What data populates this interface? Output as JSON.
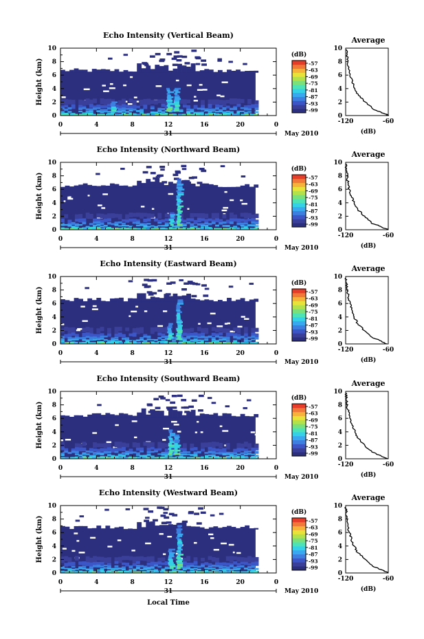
{
  "figure": {
    "type": "heatmap",
    "xlabel": "Local Time",
    "date_label": "May 2010",
    "day_label": "31",
    "colorbar_unit": "(dB)",
    "colorbar_ticks": [
      "-57",
      "-63",
      "-69",
      "-75",
      "-81",
      "-87",
      "-93",
      "-99"
    ],
    "avg_title": "Average",
    "avg_xlabel": "(dB)",
    "colors": [
      "#2b2f7e",
      "#3a3f99",
      "#3c56c8",
      "#3d7fe0",
      "#3aa8f0",
      "#35d1e6",
      "#4de3b4",
      "#7be07a",
      "#b4e04a",
      "#e8e23a",
      "#f6b23a",
      "#f2783a",
      "#e63c2a"
    ]
  },
  "chart_data": [
    {
      "type": "heatmap",
      "title": "Echo Intensity (Vertical Beam)",
      "ylabel": "Height (km)",
      "xlim": [
        0,
        24
      ],
      "ylim": [
        0,
        10
      ],
      "xticks": [
        "0",
        "4",
        "8",
        "12",
        "16",
        "20",
        "0"
      ],
      "yticks": [
        "0",
        "2",
        "4",
        "6",
        "8",
        "10"
      ],
      "top_km": 6.4,
      "bursts": [
        {
          "t": 12.2,
          "km": 4.0
        },
        {
          "t": 13.0,
          "km": 4.0
        },
        {
          "t": 6.0,
          "km": 2.0
        }
      ],
      "average": {
        "xlim": [
          -120,
          -60
        ],
        "xticks": [
          "-120",
          "-60"
        ],
        "height_km": [
          0,
          0.5,
          1,
          2,
          3,
          4,
          5,
          6,
          7,
          8,
          9,
          9.8
        ],
        "db": [
          -59,
          -70,
          -82,
          -92,
          -102,
          -107,
          -111,
          -114,
          -116,
          -117,
          -118,
          -119
        ]
      }
    },
    {
      "type": "heatmap",
      "title": "Echo Intensity (Northward Beam)",
      "ylabel": "Height (km)",
      "xlim": [
        0,
        24
      ],
      "ylim": [
        0,
        10
      ],
      "xticks": [
        "0",
        "4",
        "8",
        "12",
        "16",
        "20",
        "0"
      ],
      "yticks": [
        "0",
        "2",
        "4",
        "6",
        "8",
        "10"
      ],
      "top_km": 6.3,
      "bursts": [
        {
          "t": 13.3,
          "km": 7.5
        },
        {
          "t": 12.5,
          "km": 2.5
        }
      ],
      "average": {
        "xlim": [
          -120,
          -60
        ],
        "xticks": [
          "-120",
          "-60"
        ],
        "height_km": [
          0,
          0.5,
          1,
          2,
          3,
          4,
          5,
          6,
          7,
          8,
          9,
          9.8
        ],
        "db": [
          -60,
          -71,
          -84,
          -93,
          -103,
          -108,
          -112,
          -115,
          -117,
          -118,
          -119,
          -120
        ]
      }
    },
    {
      "type": "heatmap",
      "title": "Echo Intensity (Eastward Beam)",
      "ylabel": "Height (km)",
      "xlim": [
        0,
        24
      ],
      "ylim": [
        0,
        10
      ],
      "xticks": [
        "0",
        "4",
        "8",
        "12",
        "16",
        "20",
        "0"
      ],
      "yticks": [
        "0",
        "2",
        "4",
        "6",
        "8",
        "10"
      ],
      "top_km": 6.3,
      "bursts": [
        {
          "t": 13.3,
          "km": 6.5
        },
        {
          "t": 12.3,
          "km": 3.0
        }
      ],
      "average": {
        "xlim": [
          -120,
          -60
        ],
        "xticks": [
          "-120",
          "-60"
        ],
        "height_km": [
          0,
          0.5,
          1,
          2,
          3,
          4,
          5,
          6,
          7,
          8,
          9,
          9.8
        ],
        "db": [
          -62,
          -72,
          -83,
          -94,
          -103,
          -108,
          -111,
          -114,
          -116,
          -118,
          -119,
          -120
        ]
      }
    },
    {
      "type": "heatmap",
      "title": "Echo Intensity (Southward Beam)",
      "ylabel": "Height (km)",
      "xlim": [
        0,
        24
      ],
      "ylim": [
        0,
        10
      ],
      "xticks": [
        "0",
        "4",
        "8",
        "12",
        "16",
        "20",
        "0"
      ],
      "yticks": [
        "0",
        "2",
        "4",
        "6",
        "8",
        "10"
      ],
      "top_km": 6.2,
      "bursts": [
        {
          "t": 12.4,
          "km": 4.2
        },
        {
          "t": 13.0,
          "km": 3.5
        }
      ],
      "average": {
        "xlim": [
          -120,
          -60
        ],
        "xticks": [
          "-120",
          "-60"
        ],
        "height_km": [
          0,
          0.5,
          1,
          2,
          3,
          4,
          5,
          6,
          7,
          8,
          9,
          9.8
        ],
        "db": [
          -61,
          -71,
          -83,
          -93,
          -102,
          -107,
          -111,
          -114,
          -116,
          -118,
          -119,
          -120
        ]
      }
    },
    {
      "type": "heatmap",
      "title": "Echo Intensity (Westward Beam)",
      "ylabel": "Height (km)",
      "xlim": [
        0,
        24
      ],
      "ylim": [
        0,
        10
      ],
      "xticks": [
        "0",
        "4",
        "8",
        "12",
        "16",
        "20",
        "0"
      ],
      "yticks": [
        "0",
        "2",
        "4",
        "6",
        "8",
        "10"
      ],
      "top_km": 6.5,
      "bursts": [
        {
          "t": 13.3,
          "km": 7.0
        },
        {
          "t": 12.4,
          "km": 3.5
        }
      ],
      "average": {
        "xlim": [
          -120,
          -60
        ],
        "xticks": [
          "-120",
          "-60"
        ],
        "height_km": [
          0,
          0.5,
          1,
          2,
          3,
          4,
          5,
          6,
          7,
          8,
          9,
          9.8
        ],
        "db": [
          -60,
          -70,
          -82,
          -92,
          -103,
          -108,
          -112,
          -115,
          -117,
          -118,
          -119,
          -120
        ]
      }
    }
  ]
}
